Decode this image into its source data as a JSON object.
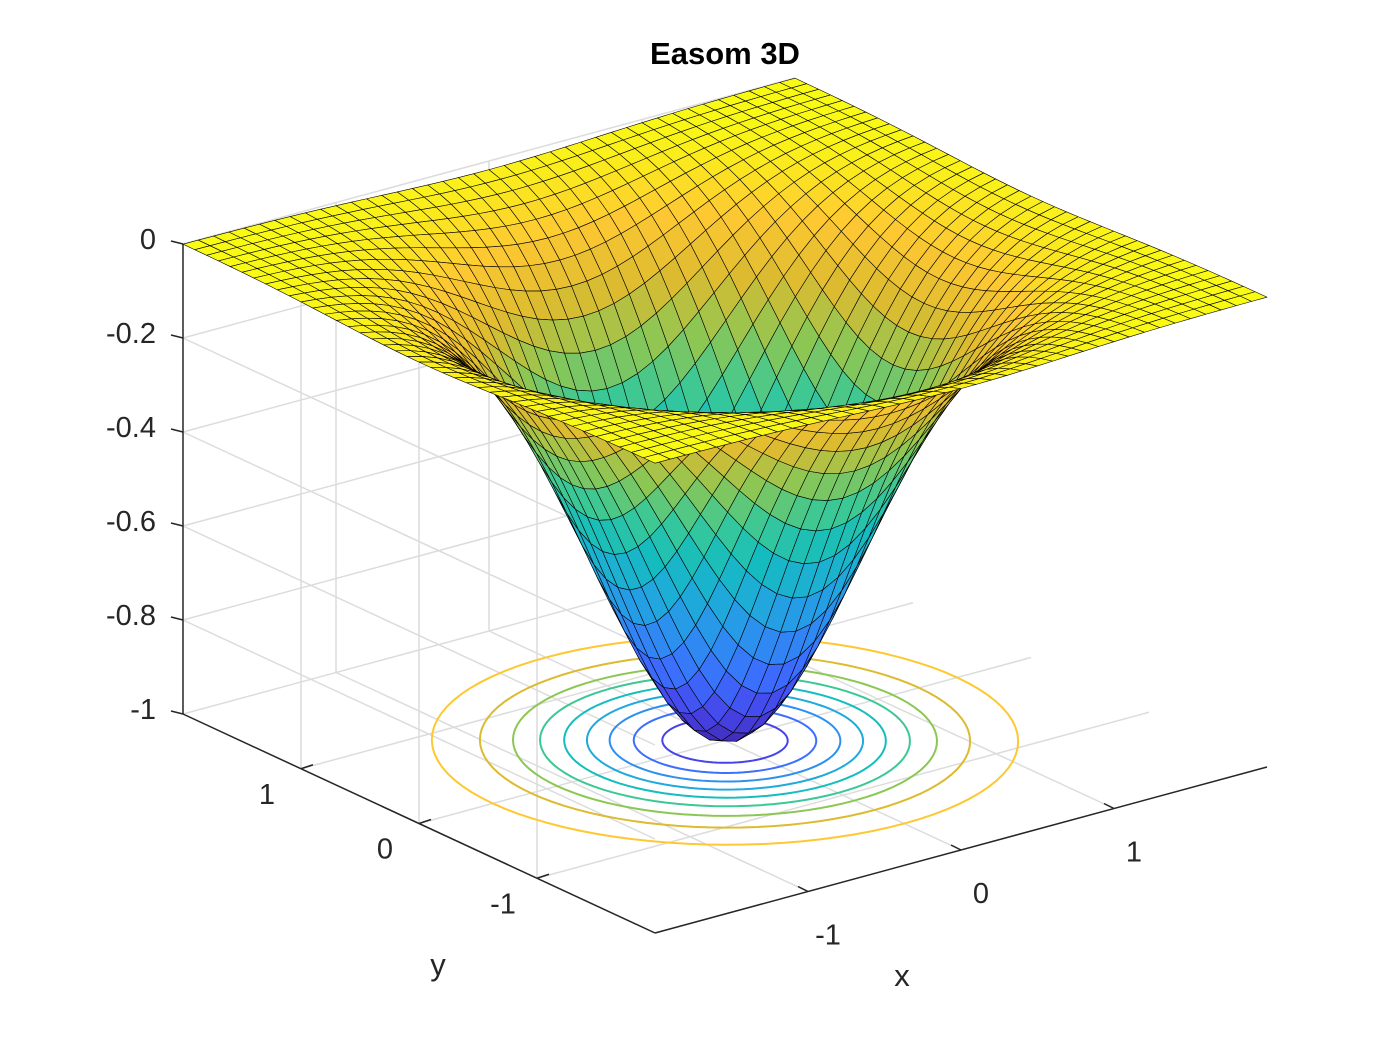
{
  "chart_data": {
    "type": "surface",
    "title": "Easom 3D",
    "xlabel": "x",
    "ylabel": "y",
    "zlabel": "",
    "function": "f(x,y) = -exp(-(x^2 + y^2))",
    "xlim": [
      -2,
      2
    ],
    "ylim": [
      -2,
      2
    ],
    "zlim": [
      -1,
      0
    ],
    "xticks": [
      -1,
      0,
      1
    ],
    "yticks": [
      -1,
      0,
      1
    ],
    "zticks": [
      0,
      -0.2,
      -0.4,
      -0.6,
      -0.8,
      -1
    ],
    "xtick_labels": [
      "-1",
      "0",
      "1"
    ],
    "ytick_labels": [
      "-1",
      "0",
      "1"
    ],
    "ztick_labels": [
      "0",
      "-0.2",
      "-0.4",
      "-0.6",
      "-0.8",
      "-1"
    ],
    "grid": true,
    "mesh_resolution": 41,
    "colormap": "parula",
    "min_point": {
      "x": 0,
      "y": 0,
      "z": -1
    },
    "contour_levels": [
      -0.9,
      -0.8,
      -0.7,
      -0.6,
      -0.5,
      -0.4,
      -0.3,
      -0.2,
      -0.1
    ]
  },
  "colors": {
    "background": "#ffffff",
    "axis": "#262626",
    "grid": "#dcdcdc",
    "mesh_edge": "#000000"
  }
}
